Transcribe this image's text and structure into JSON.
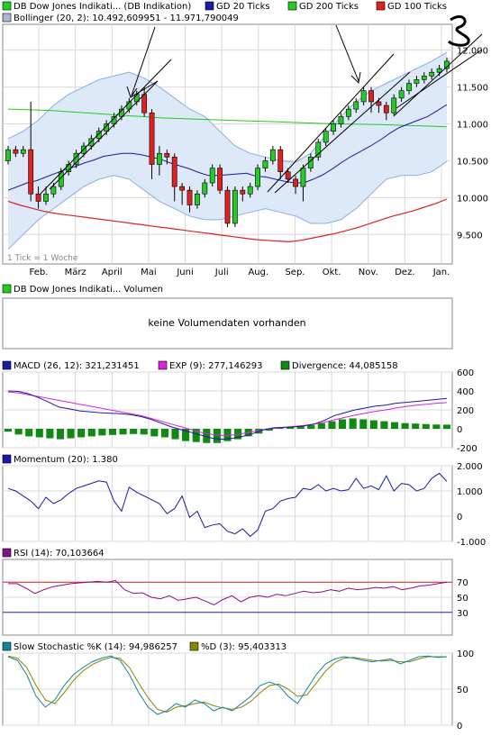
{
  "colors": {
    "candle_up": "#22cc22",
    "candle_down": "#dd2222",
    "gd20": "#1a1aa8",
    "gd200": "#22cc22",
    "gd100": "#dd2222",
    "bollinger_fill": "#dde8f8",
    "bollinger_line": "#8aaee0",
    "macd": "#1a1aa8",
    "exp": "#dd22dd",
    "divergence": "#118811",
    "momentum": "#1a1aa8",
    "rsi": "#881188",
    "stoch_k": "#118899",
    "stoch_d": "#888800",
    "grid": "#d8d8d8"
  },
  "main": {
    "legend": [
      {
        "label": "DB Dow Jones Indikati... (DB Indikation)",
        "color": "#22cc22"
      },
      {
        "label": "GD 20 Ticks",
        "color": "#1a1aa8"
      },
      {
        "label": "GD 200 Ticks",
        "color": "#22cc22"
      },
      {
        "label": "GD 100 Ticks",
        "color": "#dd2222"
      }
    ],
    "bollinger_label": "Bollinger (20, 2): 10.492,609951 - 11.971,790049",
    "tick_note": "1 Tick = 1 Woche"
  },
  "volume": {
    "legend": "DB Dow Jones Indikati... Volumen",
    "message": "keine Volumendaten vorhanden"
  },
  "macd": {
    "legend": [
      {
        "label": "MACD (26, 12): 321,231451",
        "color": "#1a1aa8"
      },
      {
        "label": "EXP (9): 277,146293",
        "color": "#dd22dd"
      },
      {
        "label": "Divergence: 44,085158",
        "color": "#118811"
      }
    ]
  },
  "momentum": {
    "legend": "Momentum (20): 1.380"
  },
  "rsi": {
    "legend": "RSI (14): 70,103664"
  },
  "stoch": {
    "legend": [
      {
        "label": "Slow Stochastic %K (14): 94,986257",
        "color": "#118899"
      },
      {
        "label": "%D (3): 95,403313",
        "color": "#888800"
      }
    ]
  },
  "chart_data": [
    {
      "type": "candlestick",
      "x_labels": [
        "Feb.",
        "März",
        "April",
        "Mai",
        "Juni",
        "Juli",
        "Aug.",
        "Sep.",
        "Okt.",
        "Nov.",
        "Dez.",
        "Jan."
      ],
      "ylim": [
        9100,
        12350
      ],
      "y_ticks": [
        9500,
        10000,
        10500,
        11000,
        11500,
        12000
      ],
      "y_tick_labels": [
        "9.500",
        "10.000",
        "10.500",
        "11.000",
        "11.500",
        "12.000"
      ],
      "candles": [
        [
          10500,
          10650,
          10450,
          10700
        ],
        [
          10650,
          10600,
          10550,
          10700
        ],
        [
          10600,
          10650,
          10550,
          10700
        ],
        [
          10650,
          10050,
          9950,
          11300
        ],
        [
          10050,
          9950,
          9850,
          10150
        ],
        [
          9950,
          10050,
          9900,
          10150
        ],
        [
          10050,
          10150,
          10000,
          10200
        ],
        [
          10150,
          10350,
          10100,
          10400
        ],
        [
          10350,
          10450,
          10300,
          10500
        ],
        [
          10450,
          10600,
          10400,
          10650
        ],
        [
          10600,
          10700,
          10550,
          10750
        ],
        [
          10700,
          10800,
          10650,
          10850
        ],
        [
          10800,
          10900,
          10750,
          10950
        ],
        [
          10900,
          11000,
          10850,
          11050
        ],
        [
          11000,
          11100,
          10950,
          11150
        ],
        [
          11100,
          11200,
          11050,
          11250
        ],
        [
          11200,
          11300,
          11150,
          11350
        ],
        [
          11300,
          11400,
          11250,
          11450
        ],
        [
          11400,
          11150,
          11100,
          11500
        ],
        [
          11150,
          10450,
          10250,
          11200
        ],
        [
          10450,
          10600,
          10300,
          10700
        ],
        [
          10600,
          10550,
          10450,
          10650
        ],
        [
          10550,
          10150,
          9950,
          10600
        ],
        [
          10150,
          10100,
          9900,
          10200
        ],
        [
          10100,
          9900,
          9800,
          10150
        ],
        [
          9900,
          10050,
          9850,
          10100
        ],
        [
          10050,
          10200,
          10000,
          10250
        ],
        [
          10200,
          10400,
          10150,
          10450
        ],
        [
          10400,
          10100,
          10050,
          10450
        ],
        [
          10100,
          9650,
          9600,
          10150
        ],
        [
          9650,
          10100,
          9600,
          10150
        ],
        [
          10100,
          10050,
          9950,
          10150
        ],
        [
          10050,
          10150,
          10000,
          10200
        ],
        [
          10150,
          10400,
          10100,
          10450
        ],
        [
          10400,
          10500,
          10350,
          10550
        ],
        [
          10500,
          10650,
          10450,
          10700
        ],
        [
          10650,
          10350,
          10250,
          10700
        ],
        [
          10350,
          10250,
          10200,
          10400
        ],
        [
          10250,
          10150,
          10050,
          10300
        ],
        [
          10150,
          10400,
          9950,
          10450
        ],
        [
          10400,
          10550,
          10350,
          10600
        ],
        [
          10550,
          10750,
          10500,
          10800
        ],
        [
          10750,
          10900,
          10700,
          10950
        ],
        [
          10900,
          11000,
          10850,
          11050
        ],
        [
          11000,
          11100,
          10950,
          11150
        ],
        [
          11100,
          11200,
          11050,
          11250
        ],
        [
          11200,
          11300,
          11150,
          11350
        ],
        [
          11300,
          11450,
          11250,
          11500
        ],
        [
          11450,
          11300,
          11150,
          11500
        ],
        [
          11300,
          11250,
          11150,
          11350
        ],
        [
          11250,
          11150,
          11050,
          11300
        ],
        [
          11150,
          11350,
          11100,
          11400
        ],
        [
          11350,
          11450,
          11300,
          11500
        ],
        [
          11450,
          11550,
          11400,
          11600
        ],
        [
          11550,
          11600,
          11500,
          11650
        ],
        [
          11600,
          11650,
          11550,
          11700
        ],
        [
          11650,
          11700,
          11600,
          11750
        ],
        [
          11700,
          11750,
          11650,
          11800
        ],
        [
          11750,
          11850,
          11700,
          11900
        ]
      ],
      "gd20": [
        10100,
        10150,
        10200,
        10230,
        10280,
        10330,
        10380,
        10420,
        10470,
        10510,
        10560,
        10580,
        10600,
        10600,
        10580,
        10550,
        10520,
        10470,
        10430,
        10390,
        10340,
        10300,
        10300,
        10310,
        10320,
        10330,
        10290,
        10280,
        10250,
        10220,
        10200,
        10200,
        10250,
        10310,
        10390,
        10480,
        10560,
        10630,
        10700,
        10780,
        10870,
        10950,
        11000,
        11050,
        11100,
        11180,
        11260
      ],
      "gd200": [
        11200,
        11190,
        11180,
        11160,
        11140,
        11120,
        11100,
        11080,
        11070,
        11060,
        11050,
        11040,
        11030,
        11020,
        11010,
        11000,
        10995,
        10990,
        10980,
        10970,
        10960
      ],
      "gd100": [
        9950,
        9900,
        9860,
        9820,
        9790,
        9770,
        9750,
        9730,
        9710,
        9690,
        9670,
        9650,
        9630,
        9610,
        9590,
        9570,
        9550,
        9530,
        9510,
        9490,
        9470,
        9450,
        9430,
        9420,
        9410,
        9400,
        9420,
        9450,
        9480,
        9510,
        9550,
        9590,
        9640,
        9690,
        9740,
        9780,
        9820,
        9870,
        9920,
        9980
      ],
      "bollinger_upper": [
        10800,
        10900,
        11050,
        11250,
        11400,
        11500,
        11600,
        11650,
        11700,
        11620,
        11500,
        11350,
        11200,
        11100,
        10900,
        10700,
        10600,
        10550,
        10500,
        10480,
        10600,
        10850,
        11100,
        11300,
        11450,
        11550,
        11650,
        11750,
        11850,
        11970
      ],
      "bollinger_lower": [
        9300,
        9500,
        9700,
        9850,
        10000,
        10150,
        10250,
        10300,
        10250,
        10100,
        9950,
        9850,
        9750,
        9700,
        9700,
        9750,
        9800,
        9850,
        9800,
        9750,
        9650,
        9650,
        9700,
        9850,
        10050,
        10250,
        10300,
        10300,
        10350,
        10490
      ]
    },
    {
      "type": "bar_line",
      "title": "MACD",
      "ylim": [
        -200,
        600
      ],
      "y_ticks": [
        -200,
        0,
        200,
        400,
        600
      ],
      "y_tick_labels": [
        "-200",
        "0",
        "200",
        "400",
        "600"
      ],
      "macd": [
        400,
        395,
        370,
        330,
        280,
        230,
        210,
        190,
        180,
        170,
        165,
        160,
        150,
        130,
        100,
        60,
        20,
        -10,
        -40,
        -70,
        -100,
        -110,
        -100,
        -80,
        -50,
        -10,
        10,
        15,
        20,
        30,
        50,
        90,
        140,
        170,
        200,
        220,
        240,
        250,
        270,
        280,
        290,
        300,
        310,
        321
      ],
      "exp": [
        390,
        380,
        360,
        340,
        320,
        300,
        280,
        260,
        240,
        220,
        200,
        180,
        160,
        140,
        110,
        80,
        50,
        20,
        -10,
        -40,
        -60,
        -70,
        -65,
        -50,
        -30,
        -10,
        5,
        15,
        25,
        35,
        50,
        70,
        95,
        120,
        145,
        165,
        185,
        200,
        220,
        235,
        250,
        260,
        270,
        277
      ],
      "divergence": [
        -30,
        -60,
        -80,
        -90,
        -100,
        -110,
        -100,
        -90,
        -80,
        -70,
        -65,
        -60,
        -55,
        -60,
        -80,
        -90,
        -110,
        -130,
        -140,
        -150,
        -150,
        -130,
        -110,
        -80,
        -50,
        -20,
        10,
        20,
        30,
        40,
        60,
        80,
        100,
        110,
        100,
        90,
        80,
        70,
        60,
        55,
        50,
        45,
        44
      ]
    },
    {
      "type": "line",
      "title": "Momentum",
      "ylim": [
        -1000,
        2000
      ],
      "y_ticks": [
        -1000,
        0,
        1000,
        2000
      ],
      "y_tick_labels": [
        "-1.000",
        "0",
        "1.000",
        "2.000"
      ],
      "values": [
        1100,
        1000,
        800,
        600,
        300,
        750,
        500,
        650,
        900,
        1100,
        1200,
        1300,
        1400,
        1350,
        600,
        200,
        1150,
        950,
        800,
        650,
        500,
        100,
        300,
        800,
        -50,
        200,
        -450,
        -350,
        -300,
        -600,
        -700,
        -500,
        -800,
        -550,
        200,
        300,
        600,
        700,
        750,
        1100,
        1050,
        1250,
        1000,
        1100,
        1000,
        1050,
        1500,
        1100,
        1200,
        1050,
        1600,
        1000,
        1300,
        1250,
        1000,
        1100,
        1500,
        1700,
        1380
      ]
    },
    {
      "type": "line",
      "title": "RSI",
      "ylim": [
        0,
        100
      ],
      "hlines": [
        30,
        70
      ],
      "y_ticks": [
        30,
        50,
        70
      ],
      "y_tick_labels": [
        "30",
        "50",
        "70"
      ],
      "values": [
        68,
        68,
        62,
        55,
        60,
        64,
        66,
        68,
        69,
        70,
        71,
        70,
        72,
        60,
        55,
        56,
        50,
        48,
        52,
        46,
        48,
        50,
        45,
        40,
        47,
        52,
        44,
        50,
        52,
        50,
        54,
        52,
        55,
        58,
        56,
        57,
        60,
        58,
        62,
        60,
        61,
        63,
        62,
        64,
        60,
        62,
        65,
        66,
        68,
        70
      ]
    },
    {
      "type": "line",
      "title": "Slow Stochastic",
      "ylim": [
        0,
        100
      ],
      "y_ticks": [
        0,
        50,
        100
      ],
      "y_tick_labels": [
        "0",
        "50",
        "100"
      ],
      "k": [
        95,
        90,
        70,
        40,
        25,
        35,
        55,
        70,
        80,
        88,
        93,
        96,
        90,
        70,
        45,
        25,
        15,
        20,
        30,
        25,
        35,
        30,
        20,
        25,
        20,
        30,
        40,
        55,
        60,
        55,
        40,
        30,
        50,
        70,
        85,
        92,
        95,
        93,
        90,
        88,
        90,
        92,
        85,
        90,
        95,
        96,
        94,
        95
      ],
      "d": [
        96,
        93,
        80,
        55,
        35,
        30,
        45,
        62,
        75,
        84,
        90,
        94,
        93,
        80,
        58,
        38,
        22,
        18,
        25,
        27,
        30,
        32,
        27,
        24,
        22,
        25,
        33,
        45,
        55,
        57,
        50,
        40,
        42,
        58,
        75,
        87,
        93,
        94,
        92,
        90,
        89,
        90,
        88,
        88,
        92,
        95,
        95,
        95
      ]
    }
  ]
}
